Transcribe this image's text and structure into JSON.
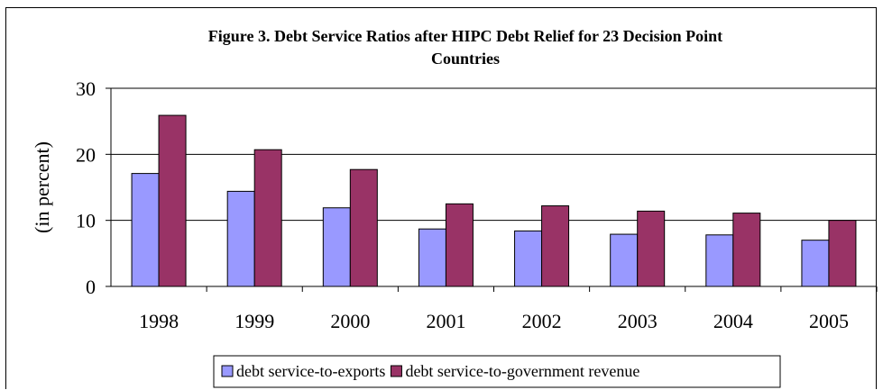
{
  "chart_data": {
    "type": "bar",
    "title_line1": "Figure 3.  Debt Service Ratios after HIPC Debt Relief for 23 Decision Point",
    "title_line2": "Countries",
    "ylabel": "(in percent)",
    "xlabel": "",
    "ylim": [
      0,
      30
    ],
    "yticks": [
      "0",
      "10",
      "20",
      "30"
    ],
    "grid": true,
    "legend_position": "bottom",
    "categories": [
      "1998",
      "1999",
      "2000",
      "2001",
      "2002",
      "2003",
      "2004",
      "2005"
    ],
    "series": [
      {
        "name": "debt service-to-exports",
        "color": "#9999ff",
        "values": [
          17.1,
          14.4,
          11.9,
          8.7,
          8.4,
          7.9,
          7.8,
          7.0
        ]
      },
      {
        "name": "debt service-to-government revenue",
        "color": "#993366",
        "values": [
          25.9,
          20.7,
          17.7,
          12.5,
          12.2,
          11.4,
          11.1,
          10.0
        ]
      }
    ]
  }
}
